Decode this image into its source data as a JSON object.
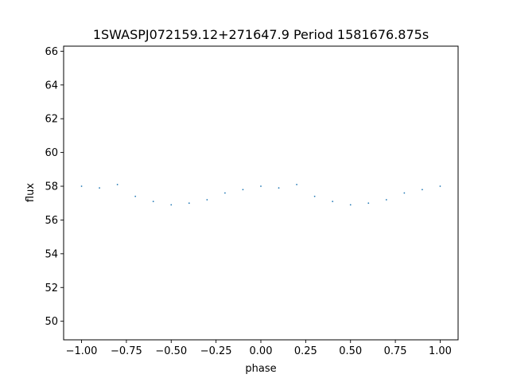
{
  "chart_data": {
    "type": "scatter",
    "title": "1SWASPJ072159.12+271647.9 Period 1581676.875s",
    "xlabel": "phase",
    "ylabel": "flux",
    "xlim": [
      -1.1,
      1.1
    ],
    "ylim": [
      48.9,
      66.3
    ],
    "xticks": [
      -1.0,
      -0.75,
      -0.5,
      -0.25,
      0.0,
      0.25,
      0.5,
      0.75,
      1.0
    ],
    "xtick_labels": [
      "−1.00",
      "−0.75",
      "−0.50",
      "−0.25",
      "0.00",
      "0.25",
      "0.50",
      "0.75",
      "1.00"
    ],
    "yticks": [
      50,
      52,
      54,
      56,
      58,
      60,
      62,
      64,
      66
    ],
    "ytick_labels": [
      "50",
      "52",
      "54",
      "56",
      "58",
      "60",
      "62",
      "64",
      "66"
    ],
    "grid": false,
    "legend": "none",
    "point_color": "#1f77b4",
    "series": [
      {
        "x": [
          -1.0,
          -0.9,
          -0.8,
          -0.7,
          -0.6,
          -0.5,
          -0.4,
          -0.3,
          -0.2,
          -0.1,
          0.0,
          0.1,
          0.2,
          0.3,
          0.4,
          0.5,
          0.6,
          0.7,
          0.8,
          0.9,
          1.0
        ],
        "y": [
          58.0,
          57.9,
          58.1,
          57.4,
          57.1,
          56.9,
          57.0,
          57.2,
          57.6,
          57.8,
          58.0,
          57.9,
          58.1,
          57.4,
          57.1,
          56.9,
          57.0,
          57.2,
          57.6,
          57.8,
          58.0
        ]
      }
    ]
  }
}
